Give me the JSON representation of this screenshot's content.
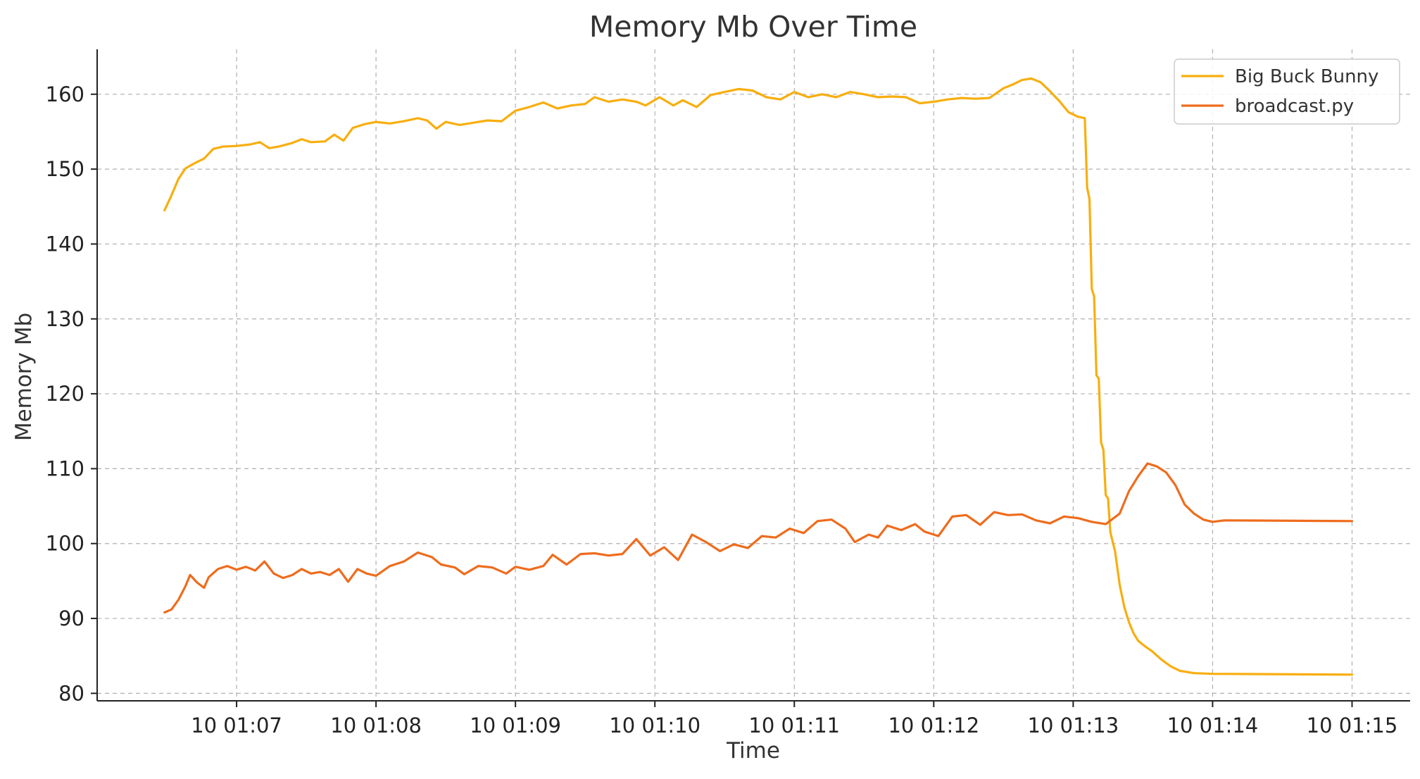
{
  "chart_data": {
    "type": "line",
    "title": "Memory Mb Over Time",
    "xlabel": "Time",
    "ylabel": "Memory Mb",
    "x_unit": "minutes",
    "xlim": [
      "01:06:00",
      "01:15:25"
    ],
    "ylim": [
      79,
      166
    ],
    "x_ticks": [
      "10 01:07",
      "10 01:08",
      "10 01:09",
      "10 01:10",
      "10 01:11",
      "10 01:12",
      "10 01:13",
      "10 01:14",
      "10 01:15"
    ],
    "y_ticks": [
      80,
      90,
      100,
      110,
      120,
      130,
      140,
      150,
      160
    ],
    "grid": true,
    "legend": {
      "placement": "top-right"
    },
    "series": [
      {
        "name": "Big Buck Bunny",
        "color": "#F8AE0F",
        "points": [
          [
            "01:06:29",
            144.5
          ],
          [
            "01:06:32",
            146.5
          ],
          [
            "01:06:35",
            148.7
          ],
          [
            "01:06:38",
            150.1
          ],
          [
            "01:06:42",
            150.8
          ],
          [
            "01:06:46",
            151.4
          ],
          [
            "01:06:50",
            152.7
          ],
          [
            "01:06:54",
            153.0
          ],
          [
            "01:07:00",
            153.1
          ],
          [
            "01:07:06",
            153.3
          ],
          [
            "01:07:10",
            153.6
          ],
          [
            "01:07:14",
            152.8
          ],
          [
            "01:07:18",
            153.0
          ],
          [
            "01:07:24",
            153.5
          ],
          [
            "01:07:28",
            154.0
          ],
          [
            "01:07:32",
            153.6
          ],
          [
            "01:07:38",
            153.7
          ],
          [
            "01:07:42",
            154.6
          ],
          [
            "01:07:46",
            153.8
          ],
          [
            "01:07:50",
            155.5
          ],
          [
            "01:07:55",
            156.0
          ],
          [
            "01:08:00",
            156.3
          ],
          [
            "01:08:06",
            156.1
          ],
          [
            "01:08:12",
            156.4
          ],
          [
            "01:08:18",
            156.8
          ],
          [
            "01:08:22",
            156.5
          ],
          [
            "01:08:26",
            155.4
          ],
          [
            "01:08:30",
            156.3
          ],
          [
            "01:08:36",
            155.9
          ],
          [
            "01:08:42",
            156.2
          ],
          [
            "01:08:48",
            156.5
          ],
          [
            "01:08:54",
            156.4
          ],
          [
            "01:09:00",
            157.8
          ],
          [
            "01:09:06",
            158.3
          ],
          [
            "01:09:12",
            158.9
          ],
          [
            "01:09:18",
            158.1
          ],
          [
            "01:09:24",
            158.5
          ],
          [
            "01:09:30",
            158.7
          ],
          [
            "01:09:34",
            159.6
          ],
          [
            "01:09:40",
            159.0
          ],
          [
            "01:09:46",
            159.3
          ],
          [
            "01:09:52",
            159.0
          ],
          [
            "01:09:56",
            158.5
          ],
          [
            "01:10:02",
            159.6
          ],
          [
            "01:10:08",
            158.5
          ],
          [
            "01:10:12",
            159.2
          ],
          [
            "01:10:18",
            158.3
          ],
          [
            "01:10:24",
            159.9
          ],
          [
            "01:10:30",
            160.3
          ],
          [
            "01:10:36",
            160.7
          ],
          [
            "01:10:42",
            160.5
          ],
          [
            "01:10:48",
            159.6
          ],
          [
            "01:10:54",
            159.3
          ],
          [
            "01:11:00",
            160.3
          ],
          [
            "01:11:06",
            159.6
          ],
          [
            "01:11:12",
            160.0
          ],
          [
            "01:11:18",
            159.6
          ],
          [
            "01:11:24",
            160.3
          ],
          [
            "01:11:30",
            160.0
          ],
          [
            "01:11:36",
            159.6
          ],
          [
            "01:11:42",
            159.7
          ],
          [
            "01:11:48",
            159.6
          ],
          [
            "01:11:54",
            158.8
          ],
          [
            "01:12:00",
            159.0
          ],
          [
            "01:12:06",
            159.3
          ],
          [
            "01:12:12",
            159.5
          ],
          [
            "01:12:18",
            159.4
          ],
          [
            "01:12:24",
            159.5
          ],
          [
            "01:12:30",
            160.8
          ],
          [
            "01:12:34",
            161.3
          ],
          [
            "01:12:38",
            161.9
          ],
          [
            "01:12:42",
            162.1
          ],
          [
            "01:12:46",
            161.6
          ],
          [
            "01:12:50",
            160.4
          ],
          [
            "01:12:54",
            159.1
          ],
          [
            "01:12:58",
            157.6
          ],
          [
            "01:13:02",
            157.0
          ],
          [
            "01:13:05",
            156.8
          ],
          [
            "01:13:06",
            147.5
          ],
          [
            "01:13:07",
            146.0
          ],
          [
            "01:13:08",
            134.0
          ],
          [
            "01:13:09",
            133.0
          ],
          [
            "01:13:10",
            122.5
          ],
          [
            "01:13:11",
            122.0
          ],
          [
            "01:13:12",
            113.5
          ],
          [
            "01:13:13",
            112.5
          ],
          [
            "01:13:14",
            106.5
          ],
          [
            "01:13:15",
            106.0
          ],
          [
            "01:13:16",
            101.5
          ],
          [
            "01:13:18",
            99.0
          ],
          [
            "01:13:20",
            94.5
          ],
          [
            "01:13:22",
            91.5
          ],
          [
            "01:13:24",
            89.5
          ],
          [
            "01:13:26",
            88.0
          ],
          [
            "01:13:28",
            87.0
          ],
          [
            "01:13:30",
            86.5
          ],
          [
            "01:13:34",
            85.6
          ],
          [
            "01:13:38",
            84.5
          ],
          [
            "01:13:42",
            83.6
          ],
          [
            "01:13:46",
            83.0
          ],
          [
            "01:13:52",
            82.7
          ],
          [
            "01:14:00",
            82.6
          ],
          [
            "01:15:00",
            82.5
          ],
          [
            "01:15:00",
            82.5
          ]
        ]
      },
      {
        "name": "broadcast.py",
        "color": "#EE6C1D",
        "points": [
          [
            "01:06:29",
            90.8
          ],
          [
            "01:06:32",
            91.2
          ],
          [
            "01:06:35",
            92.5
          ],
          [
            "01:06:38",
            94.3
          ],
          [
            "01:06:40",
            95.8
          ],
          [
            "01:06:43",
            94.8
          ],
          [
            "01:06:46",
            94.1
          ],
          [
            "01:06:48",
            95.5
          ],
          [
            "01:06:52",
            96.6
          ],
          [
            "01:06:56",
            97.0
          ],
          [
            "01:07:00",
            96.5
          ],
          [
            "01:07:04",
            96.9
          ],
          [
            "01:07:08",
            96.4
          ],
          [
            "01:07:12",
            97.6
          ],
          [
            "01:07:16",
            96.0
          ],
          [
            "01:07:20",
            95.4
          ],
          [
            "01:07:24",
            95.8
          ],
          [
            "01:07:28",
            96.6
          ],
          [
            "01:07:32",
            96.0
          ],
          [
            "01:07:36",
            96.2
          ],
          [
            "01:07:40",
            95.8
          ],
          [
            "01:07:44",
            96.6
          ],
          [
            "01:07:48",
            94.9
          ],
          [
            "01:07:52",
            96.6
          ],
          [
            "01:07:56",
            96.0
          ],
          [
            "01:08:00",
            95.7
          ],
          [
            "01:08:06",
            97.0
          ],
          [
            "01:08:12",
            97.6
          ],
          [
            "01:08:18",
            98.8
          ],
          [
            "01:08:24",
            98.2
          ],
          [
            "01:08:28",
            97.2
          ],
          [
            "01:08:34",
            96.8
          ],
          [
            "01:08:38",
            95.9
          ],
          [
            "01:08:44",
            97.0
          ],
          [
            "01:08:50",
            96.8
          ],
          [
            "01:08:56",
            96.0
          ],
          [
            "01:09:00",
            96.9
          ],
          [
            "01:09:06",
            96.5
          ],
          [
            "01:09:12",
            97.0
          ],
          [
            "01:09:16",
            98.5
          ],
          [
            "01:09:22",
            97.2
          ],
          [
            "01:09:28",
            98.6
          ],
          [
            "01:09:34",
            98.7
          ],
          [
            "01:09:40",
            98.4
          ],
          [
            "01:09:46",
            98.6
          ],
          [
            "01:09:52",
            100.6
          ],
          [
            "01:09:58",
            98.4
          ],
          [
            "01:10:04",
            99.5
          ],
          [
            "01:10:10",
            97.8
          ],
          [
            "01:10:16",
            101.2
          ],
          [
            "01:10:22",
            100.2
          ],
          [
            "01:10:28",
            99.0
          ],
          [
            "01:10:34",
            99.9
          ],
          [
            "01:10:40",
            99.4
          ],
          [
            "01:10:46",
            101.0
          ],
          [
            "01:10:52",
            100.8
          ],
          [
            "01:10:58",
            102.0
          ],
          [
            "01:11:04",
            101.4
          ],
          [
            "01:11:10",
            103.0
          ],
          [
            "01:11:16",
            103.2
          ],
          [
            "01:11:22",
            102.0
          ],
          [
            "01:11:26",
            100.2
          ],
          [
            "01:11:32",
            101.2
          ],
          [
            "01:11:36",
            100.8
          ],
          [
            "01:11:40",
            102.4
          ],
          [
            "01:11:46",
            101.8
          ],
          [
            "01:11:52",
            102.6
          ],
          [
            "01:11:56",
            101.6
          ],
          [
            "01:12:02",
            101.0
          ],
          [
            "01:12:08",
            103.6
          ],
          [
            "01:12:14",
            103.8
          ],
          [
            "01:12:20",
            102.5
          ],
          [
            "01:12:26",
            104.2
          ],
          [
            "01:12:32",
            103.8
          ],
          [
            "01:12:38",
            103.9
          ],
          [
            "01:12:44",
            103.1
          ],
          [
            "01:12:50",
            102.7
          ],
          [
            "01:12:56",
            103.6
          ],
          [
            "01:13:02",
            103.4
          ],
          [
            "01:13:08",
            102.9
          ],
          [
            "01:13:14",
            102.6
          ],
          [
            "01:13:20",
            104.0
          ],
          [
            "01:13:24",
            107.0
          ],
          [
            "01:13:28",
            109.0
          ],
          [
            "01:13:32",
            110.7
          ],
          [
            "01:13:36",
            110.3
          ],
          [
            "01:13:40",
            109.5
          ],
          [
            "01:13:44",
            107.8
          ],
          [
            "01:13:48",
            105.2
          ],
          [
            "01:13:52",
            104.0
          ],
          [
            "01:13:56",
            103.2
          ],
          [
            "01:14:00",
            102.9
          ],
          [
            "01:14:05",
            103.1
          ],
          [
            "01:15:00",
            103.0
          ],
          [
            "01:15:00",
            103.0
          ]
        ]
      }
    ]
  }
}
